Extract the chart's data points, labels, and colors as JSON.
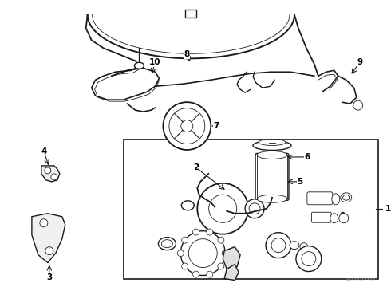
{
  "bg_color": "#ffffff",
  "line_color": "#1a1a1a",
  "fig_width": 4.9,
  "fig_height": 3.6,
  "dpi": 100,
  "watermark": "44320-12322"
}
